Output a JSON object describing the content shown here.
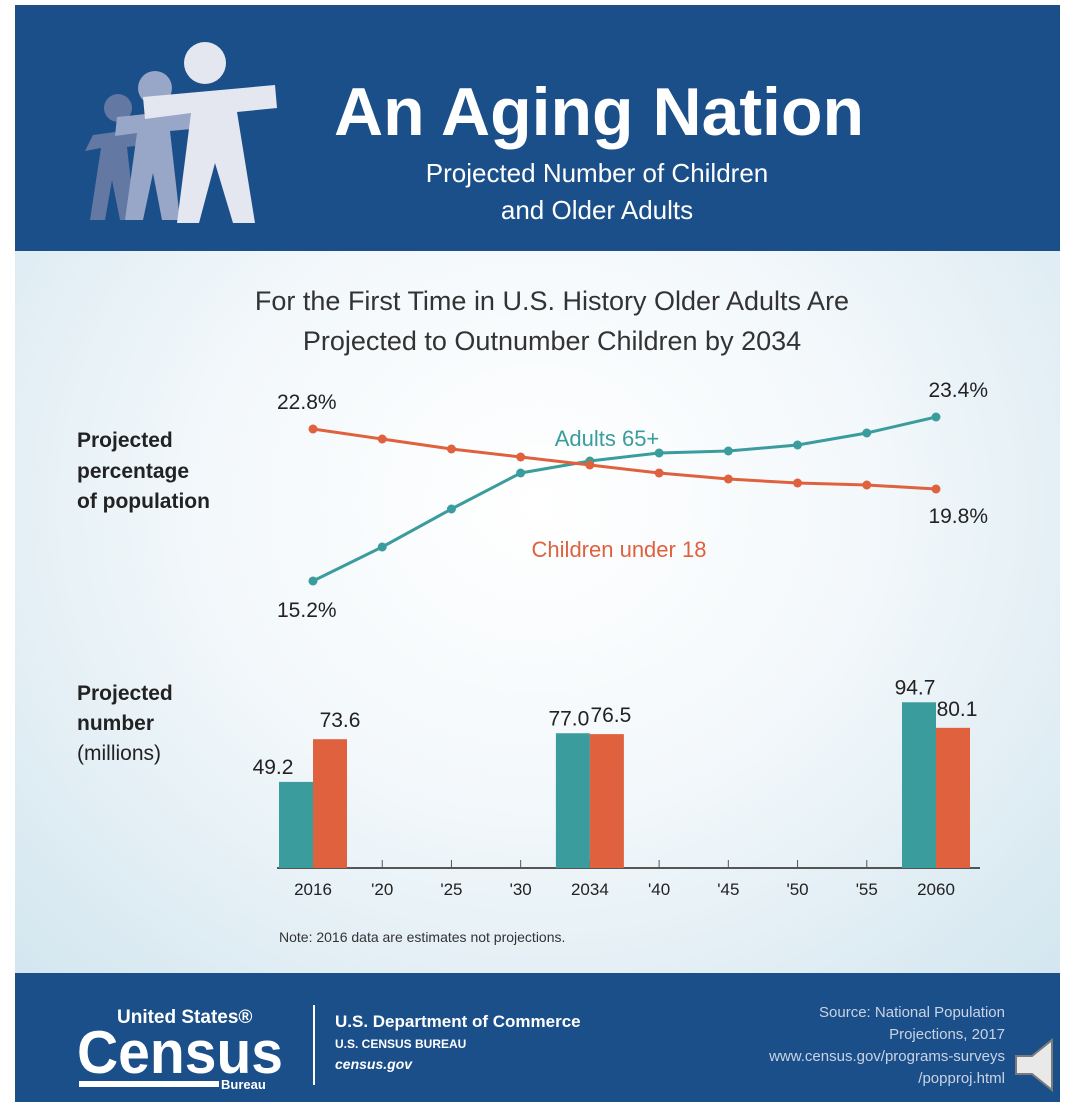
{
  "header": {
    "title": "An Aging Nation",
    "subtitle_line1": "Projected Number of Children",
    "subtitle_line2": "and Older Adults",
    "icon": "people-walking-icon"
  },
  "headline": {
    "line1": "For the First Time in U.S. History Older Adults Are",
    "line2": "Projected to Outnumber Children by 2034"
  },
  "colors": {
    "header_blue": "#1b4f89",
    "adults_teal": "#3a9c9c",
    "children_orange": "#e0613e"
  },
  "chart_data": [
    {
      "type": "line",
      "row_label": [
        "Projected",
        "percentage",
        "of population"
      ],
      "x": [
        "2016",
        "'20",
        "'25",
        "'30",
        "2034",
        "'40",
        "'45",
        "'50",
        "'55",
        "2060"
      ],
      "series": [
        {
          "name": "Adults 65+",
          "values": [
            15.2,
            16.9,
            18.8,
            20.6,
            21.2,
            21.6,
            21.7,
            22.0,
            22.6,
            23.4
          ],
          "labels": [
            "15.2%",
            "23.4%"
          ]
        },
        {
          "name": "Children under 18",
          "values": [
            22.8,
            22.3,
            21.8,
            21.4,
            21.0,
            20.6,
            20.3,
            20.1,
            20.0,
            19.8
          ],
          "labels": [
            "22.8%",
            "19.8%"
          ]
        }
      ],
      "ylim": [
        14.5,
        24
      ]
    },
    {
      "type": "bar",
      "row_label": [
        "Projected",
        "number"
      ],
      "row_unit": "(millions)",
      "categories": [
        "2016",
        "2034",
        "2060"
      ],
      "series": [
        {
          "name": "Adults 65+",
          "values": [
            49.2,
            77.0,
            94.7
          ],
          "labels": [
            "49.2",
            "77.0",
            "94.7"
          ]
        },
        {
          "name": "Children under 18",
          "values": [
            73.6,
            76.5,
            80.1
          ],
          "labels": [
            "73.6",
            "76.5",
            "80.1"
          ]
        }
      ],
      "x_ticks": [
        "2016",
        "'20",
        "'25",
        "'30",
        "2034",
        "'40",
        "'45",
        "'50",
        "'55",
        "2060"
      ],
      "ylim": [
        0,
        100
      ]
    }
  ],
  "note": "Note: 2016 data are estimates not projections.",
  "footer": {
    "logo_top": "United States®",
    "logo_main": "Census",
    "logo_bottom": "Bureau",
    "dept": "U.S. Department of Commerce",
    "bureau": "U.S. CENSUS BUREAU",
    "site": "census.gov",
    "source_lines": [
      "Source: National Population",
      "Projections, 2017",
      "www.census.gov/programs-surveys",
      "/popproj.html"
    ]
  },
  "speaker_icon": "speaker-icon"
}
